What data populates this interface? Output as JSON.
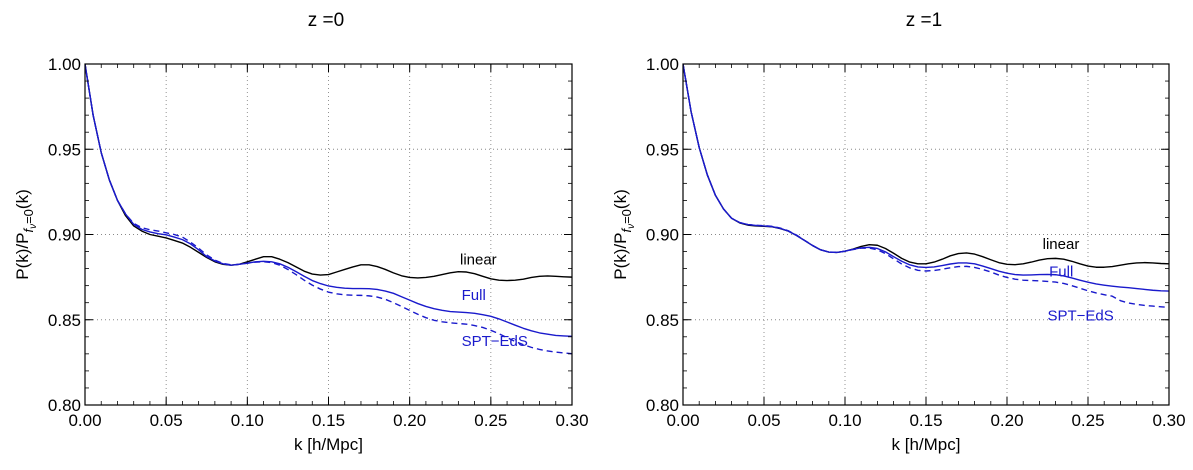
{
  "chart_data": [
    {
      "type": "line",
      "title": "z =0",
      "xlabel": "k [h/Mpc]",
      "ylabel_main": "P(k)/P",
      "ylabel_sub": "f",
      "ylabel_subsub": "ν",
      "ylabel_subtail": "=0",
      "ylabel_tail": "(k)",
      "xlim": [
        0.0,
        0.3
      ],
      "ylim": [
        0.8,
        1.0
      ],
      "xticks": [
        0.0,
        0.05,
        0.1,
        0.15,
        0.2,
        0.25,
        0.3
      ],
      "xtick_labels": [
        "0.00",
        "0.05",
        "0.10",
        "0.15",
        "0.20",
        "0.25",
        "0.30"
      ],
      "yticks": [
        0.8,
        0.85,
        0.9,
        0.95,
        1.0
      ],
      "ytick_labels": [
        "0.80",
        "0.85",
        "0.90",
        "0.95",
        "1.00"
      ],
      "grid": "dotted",
      "annotations": [
        {
          "text": "linear",
          "x": 0.231,
          "y": 0.8825,
          "color": "#000000"
        },
        {
          "text": "Full",
          "x": 0.232,
          "y": 0.8615,
          "color": "#1a1acc"
        },
        {
          "text": "SPT−EdS",
          "x": 0.232,
          "y": 0.8345,
          "color": "#1a1acc"
        }
      ],
      "series": [
        {
          "name": "linear",
          "color": "#000000",
          "dash": "solid",
          "x": [
            0.0,
            0.005,
            0.01,
            0.015,
            0.02,
            0.025,
            0.03,
            0.035,
            0.04,
            0.045,
            0.05,
            0.055,
            0.06,
            0.065,
            0.07,
            0.075,
            0.08,
            0.085,
            0.09,
            0.095,
            0.1,
            0.105,
            0.11,
            0.115,
            0.12,
            0.125,
            0.13,
            0.135,
            0.14,
            0.145,
            0.15,
            0.155,
            0.16,
            0.165,
            0.17,
            0.175,
            0.18,
            0.185,
            0.19,
            0.195,
            0.2,
            0.205,
            0.21,
            0.215,
            0.22,
            0.225,
            0.23,
            0.235,
            0.24,
            0.245,
            0.25,
            0.255,
            0.26,
            0.265,
            0.27,
            0.275,
            0.28,
            0.285,
            0.29,
            0.295,
            0.3
          ],
          "y": [
            1.0,
            0.97,
            0.948,
            0.932,
            0.92,
            0.911,
            0.905,
            0.902,
            0.9,
            0.899,
            0.898,
            0.8965,
            0.895,
            0.8925,
            0.8895,
            0.8865,
            0.884,
            0.8825,
            0.882,
            0.8825,
            0.884,
            0.8855,
            0.887,
            0.887,
            0.8855,
            0.8835,
            0.881,
            0.8785,
            0.8768,
            0.8762,
            0.8765,
            0.878,
            0.8795,
            0.881,
            0.8822,
            0.8822,
            0.8812,
            0.8795,
            0.8775,
            0.8758,
            0.8748,
            0.8745,
            0.8748,
            0.8755,
            0.8765,
            0.8775,
            0.8782,
            0.878,
            0.877,
            0.8755,
            0.874,
            0.8732,
            0.873,
            0.8732,
            0.8738,
            0.8748,
            0.8755,
            0.8757,
            0.8755,
            0.8752,
            0.875
          ]
        },
        {
          "name": "Full",
          "color": "#1a1acc",
          "dash": "solid",
          "x": [
            0.0,
            0.005,
            0.01,
            0.015,
            0.02,
            0.025,
            0.03,
            0.035,
            0.04,
            0.045,
            0.05,
            0.055,
            0.06,
            0.065,
            0.07,
            0.075,
            0.08,
            0.085,
            0.09,
            0.095,
            0.1,
            0.105,
            0.11,
            0.115,
            0.12,
            0.125,
            0.13,
            0.135,
            0.14,
            0.145,
            0.15,
            0.155,
            0.16,
            0.165,
            0.17,
            0.175,
            0.18,
            0.185,
            0.19,
            0.195,
            0.2,
            0.205,
            0.21,
            0.215,
            0.22,
            0.225,
            0.23,
            0.235,
            0.24,
            0.245,
            0.25,
            0.255,
            0.26,
            0.265,
            0.27,
            0.275,
            0.28,
            0.285,
            0.29,
            0.295,
            0.3
          ],
          "y": [
            1.0,
            0.97,
            0.948,
            0.932,
            0.92,
            0.912,
            0.906,
            0.903,
            0.9015,
            0.9005,
            0.8998,
            0.8985,
            0.897,
            0.8945,
            0.891,
            0.887,
            0.8845,
            0.8828,
            0.882,
            0.8825,
            0.8832,
            0.884,
            0.8843,
            0.884,
            0.8828,
            0.8808,
            0.8782,
            0.8755,
            0.873,
            0.8712,
            0.8698,
            0.869,
            0.8685,
            0.8683,
            0.8683,
            0.8682,
            0.8678,
            0.8668,
            0.8655,
            0.8635,
            0.8615,
            0.8595,
            0.8578,
            0.8565,
            0.8555,
            0.8548,
            0.8545,
            0.8542,
            0.8538,
            0.853,
            0.852,
            0.8505,
            0.8487,
            0.8468,
            0.845,
            0.8435,
            0.8423,
            0.8415,
            0.8408,
            0.8405,
            0.8403
          ]
        },
        {
          "name": "SPT−EdS",
          "color": "#1a1acc",
          "dash": "dashed",
          "x": [
            0.0,
            0.005,
            0.01,
            0.015,
            0.02,
            0.025,
            0.03,
            0.035,
            0.04,
            0.045,
            0.05,
            0.055,
            0.06,
            0.065,
            0.07,
            0.075,
            0.08,
            0.085,
            0.09,
            0.095,
            0.1,
            0.105,
            0.11,
            0.115,
            0.12,
            0.125,
            0.13,
            0.135,
            0.14,
            0.145,
            0.15,
            0.155,
            0.16,
            0.165,
            0.17,
            0.175,
            0.18,
            0.185,
            0.19,
            0.195,
            0.2,
            0.205,
            0.21,
            0.215,
            0.22,
            0.225,
            0.23,
            0.235,
            0.24,
            0.245,
            0.25,
            0.255,
            0.26,
            0.265,
            0.27,
            0.275,
            0.28,
            0.285,
            0.29,
            0.295,
            0.3
          ],
          "y": [
            1.0,
            0.97,
            0.948,
            0.932,
            0.92,
            0.912,
            0.9065,
            0.904,
            0.9028,
            0.902,
            0.901,
            0.9,
            0.8985,
            0.8955,
            0.892,
            0.888,
            0.885,
            0.883,
            0.8822,
            0.8825,
            0.8832,
            0.8838,
            0.884,
            0.8835,
            0.882,
            0.8795,
            0.8765,
            0.8732,
            0.8703,
            0.868,
            0.8662,
            0.8652,
            0.8646,
            0.8644,
            0.8643,
            0.864,
            0.8633,
            0.862,
            0.86,
            0.8578,
            0.8555,
            0.8532,
            0.8512,
            0.8497,
            0.8488,
            0.8482,
            0.8478,
            0.8474,
            0.8466,
            0.8455,
            0.8438,
            0.8418,
            0.8395,
            0.8373,
            0.8354,
            0.8338,
            0.8326,
            0.8317,
            0.831,
            0.8305,
            0.8301
          ]
        }
      ]
    },
    {
      "type": "line",
      "title": "z =1",
      "xlabel": "k [h/Mpc]",
      "ylabel_main": "P(k)/P",
      "ylabel_sub": "f",
      "ylabel_subsub": "ν",
      "ylabel_subtail": "=0",
      "ylabel_tail": "(k)",
      "xlim": [
        0.0,
        0.3
      ],
      "ylim": [
        0.8,
        1.0
      ],
      "xticks": [
        0.0,
        0.05,
        0.1,
        0.15,
        0.2,
        0.25,
        0.3
      ],
      "xtick_labels": [
        "0.00",
        "0.05",
        "0.10",
        "0.15",
        "0.20",
        "0.25",
        "0.30"
      ],
      "yticks": [
        0.8,
        0.85,
        0.9,
        0.95,
        1.0
      ],
      "ytick_labels": [
        "0.80",
        "0.85",
        "0.90",
        "0.95",
        "1.00"
      ],
      "grid": "dotted",
      "annotations": [
        {
          "text": "linear",
          "x": 0.222,
          "y": 0.8915,
          "color": "#000000"
        },
        {
          "text": "Full",
          "x": 0.226,
          "y": 0.8755,
          "color": "#1a1acc"
        },
        {
          "text": "SPT−EdS",
          "x": 0.225,
          "y": 0.8495,
          "color": "#1a1acc"
        }
      ],
      "series": [
        {
          "name": "linear",
          "color": "#000000",
          "dash": "solid",
          "x": [
            0.0,
            0.005,
            0.01,
            0.015,
            0.02,
            0.025,
            0.03,
            0.035,
            0.04,
            0.045,
            0.05,
            0.055,
            0.06,
            0.065,
            0.07,
            0.075,
            0.08,
            0.085,
            0.09,
            0.095,
            0.1,
            0.105,
            0.11,
            0.115,
            0.12,
            0.125,
            0.13,
            0.135,
            0.14,
            0.145,
            0.15,
            0.155,
            0.16,
            0.165,
            0.17,
            0.175,
            0.18,
            0.185,
            0.19,
            0.195,
            0.2,
            0.205,
            0.21,
            0.215,
            0.22,
            0.225,
            0.23,
            0.235,
            0.24,
            0.245,
            0.25,
            0.255,
            0.26,
            0.265,
            0.27,
            0.275,
            0.28,
            0.285,
            0.29,
            0.295,
            0.3
          ],
          "y": [
            1.0,
            0.972,
            0.951,
            0.935,
            0.923,
            0.915,
            0.9095,
            0.9068,
            0.9055,
            0.905,
            0.9048,
            0.9045,
            0.9035,
            0.902,
            0.8995,
            0.8965,
            0.8935,
            0.891,
            0.8897,
            0.8895,
            0.8902,
            0.8915,
            0.893,
            0.894,
            0.8937,
            0.8918,
            0.889,
            0.886,
            0.8838,
            0.8828,
            0.8828,
            0.8838,
            0.8855,
            0.8875,
            0.8888,
            0.8892,
            0.8885,
            0.887,
            0.8852,
            0.8835,
            0.8825,
            0.8823,
            0.8828,
            0.8838,
            0.885,
            0.8858,
            0.886,
            0.8855,
            0.8843,
            0.8828,
            0.8815,
            0.8808,
            0.8808,
            0.8812,
            0.882,
            0.8828,
            0.8833,
            0.8835,
            0.8833,
            0.883,
            0.8828
          ]
        },
        {
          "name": "Full",
          "color": "#1a1acc",
          "dash": "solid",
          "x": [
            0.0,
            0.005,
            0.01,
            0.015,
            0.02,
            0.025,
            0.03,
            0.035,
            0.04,
            0.045,
            0.05,
            0.055,
            0.06,
            0.065,
            0.07,
            0.075,
            0.08,
            0.085,
            0.09,
            0.095,
            0.1,
            0.105,
            0.11,
            0.115,
            0.12,
            0.125,
            0.13,
            0.135,
            0.14,
            0.145,
            0.15,
            0.155,
            0.16,
            0.165,
            0.17,
            0.175,
            0.18,
            0.185,
            0.19,
            0.195,
            0.2,
            0.205,
            0.21,
            0.215,
            0.22,
            0.225,
            0.23,
            0.235,
            0.24,
            0.245,
            0.25,
            0.255,
            0.26,
            0.265,
            0.27,
            0.275,
            0.28,
            0.285,
            0.29,
            0.295,
            0.3
          ],
          "y": [
            1.0,
            0.972,
            0.951,
            0.935,
            0.923,
            0.915,
            0.9095,
            0.907,
            0.9058,
            0.9053,
            0.905,
            0.9046,
            0.9036,
            0.902,
            0.8995,
            0.8965,
            0.8935,
            0.891,
            0.8897,
            0.8895,
            0.8902,
            0.8913,
            0.8922,
            0.8925,
            0.8918,
            0.8898,
            0.887,
            0.8843,
            0.8822,
            0.881,
            0.8807,
            0.881,
            0.8818,
            0.8827,
            0.8833,
            0.8833,
            0.8828,
            0.8815,
            0.88,
            0.8785,
            0.8773,
            0.8765,
            0.8762,
            0.8763,
            0.8765,
            0.8766,
            0.8764,
            0.8757,
            0.8745,
            0.8732,
            0.872,
            0.871,
            0.8703,
            0.8697,
            0.8692,
            0.8688,
            0.8683,
            0.8678,
            0.8673,
            0.867,
            0.8668
          ]
        },
        {
          "name": "SPT−EdS",
          "color": "#1a1acc",
          "dash": "dashed",
          "x": [
            0.0,
            0.005,
            0.01,
            0.015,
            0.02,
            0.025,
            0.03,
            0.035,
            0.04,
            0.045,
            0.05,
            0.055,
            0.06,
            0.065,
            0.07,
            0.075,
            0.08,
            0.085,
            0.09,
            0.095,
            0.1,
            0.105,
            0.11,
            0.115,
            0.12,
            0.125,
            0.13,
            0.135,
            0.14,
            0.145,
            0.15,
            0.155,
            0.16,
            0.165,
            0.17,
            0.175,
            0.18,
            0.185,
            0.19,
            0.195,
            0.2,
            0.205,
            0.21,
            0.215,
            0.22,
            0.225,
            0.23,
            0.235,
            0.24,
            0.245,
            0.25,
            0.255,
            0.26,
            0.265,
            0.27,
            0.275,
            0.28,
            0.285,
            0.29,
            0.295,
            0.3
          ],
          "y": [
            1.0,
            0.972,
            0.951,
            0.935,
            0.923,
            0.915,
            0.9095,
            0.907,
            0.9058,
            0.9054,
            0.9052,
            0.9048,
            0.9038,
            0.9022,
            0.8997,
            0.8966,
            0.8936,
            0.891,
            0.8897,
            0.8895,
            0.8902,
            0.8912,
            0.892,
            0.892,
            0.891,
            0.8888,
            0.8857,
            0.8827,
            0.8804,
            0.879,
            0.8786,
            0.8789,
            0.8796,
            0.8805,
            0.8812,
            0.8813,
            0.8807,
            0.8795,
            0.878,
            0.8762,
            0.8748,
            0.8738,
            0.8732,
            0.873,
            0.8728,
            0.8725,
            0.8721,
            0.8713,
            0.87,
            0.8685,
            0.867,
            0.8657,
            0.8647,
            0.8638,
            0.8612,
            0.8598,
            0.859,
            0.8584,
            0.858,
            0.8576,
            0.8573
          ]
        }
      ]
    }
  ]
}
